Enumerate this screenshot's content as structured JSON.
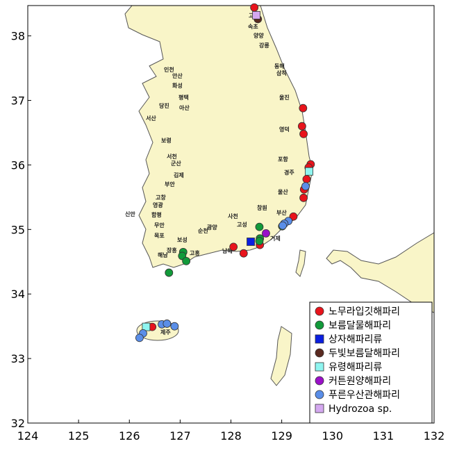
{
  "chart_data": {
    "type": "scatter",
    "xlim": [
      124,
      132
    ],
    "ylim": [
      32,
      38.47
    ],
    "xticks": [
      124,
      125,
      126,
      127,
      128,
      129,
      130,
      131,
      132
    ],
    "yticks": [
      32,
      33,
      34,
      35,
      36,
      37,
      38
    ],
    "legend": "lower right",
    "series": [
      {
        "name": "노무라입깃해파리",
        "color": "#e8141c",
        "marker": "circle",
        "x": [
          128.46,
          129.42,
          129.4,
          129.43,
          129.57,
          129.53,
          129.49,
          129.44,
          129.43,
          129.23,
          128.57,
          128.25,
          128.05,
          126.45
        ],
        "y": [
          38.44,
          36.88,
          36.6,
          36.48,
          36.01,
          35.96,
          35.78,
          35.62,
          35.49,
          35.2,
          34.76,
          34.63,
          34.73,
          33.49
        ]
      },
      {
        "name": "보름달물해파리",
        "color": "#129a3a",
        "marker": "circle",
        "x": [
          128.56,
          128.57,
          128.56,
          127.06,
          127.04,
          127.12,
          126.78,
          129.01
        ],
        "y": [
          35.04,
          34.86,
          34.82,
          34.65,
          34.59,
          34.51,
          34.33,
          35.05
        ]
      },
      {
        "name": "상자해파리류",
        "color": "#0a1ee0",
        "marker": "square",
        "x": [
          128.39
        ],
        "y": [
          34.81
        ]
      },
      {
        "name": "두빛보름달해파리",
        "color": "#5a2a20",
        "marker": "circle",
        "x": [
          128.53
        ],
        "y": [
          38.26
        ]
      },
      {
        "name": "유령해파리류",
        "color": "#8ff5f0",
        "marker": "square",
        "x": [
          129.54,
          126.33
        ],
        "y": [
          35.9,
          33.49
        ]
      },
      {
        "name": "커튼원양해파리",
        "color": "#9a10c8",
        "marker": "circle",
        "x": [
          128.69
        ],
        "y": [
          34.94
        ]
      },
      {
        "name": "푸른우산관해파리",
        "color": "#5a8ee8",
        "marker": "circle",
        "x": [
          129.13,
          129.05,
          129.47,
          129.02,
          126.64,
          126.74,
          126.89,
          126.27,
          126.2
        ],
        "y": [
          35.13,
          35.09,
          35.67,
          35.06,
          33.53,
          33.54,
          33.5,
          33.39,
          33.32
        ]
      },
      {
        "name": "Hydrozoa sp.",
        "color": "#d4a8f0",
        "marker": "square",
        "x": [
          128.5
        ],
        "y": [
          38.32
        ]
      }
    ]
  },
  "map_labels": [
    "고성",
    "속초",
    "양양",
    "강릉",
    "동해",
    "삼척",
    "울진",
    "영덕",
    "포항",
    "경주",
    "울산",
    "부산",
    "거제",
    "창원",
    "고성",
    "사천",
    "남해",
    "광양",
    "순천",
    "고흥",
    "보성",
    "장흥",
    "해남",
    "목포",
    "무안",
    "신안",
    "함평",
    "영광",
    "고창",
    "부안",
    "김제",
    "군산",
    "서천",
    "보령",
    "서산",
    "당진",
    "아산",
    "평택",
    "화성",
    "안산",
    "인천",
    "제주"
  ]
}
